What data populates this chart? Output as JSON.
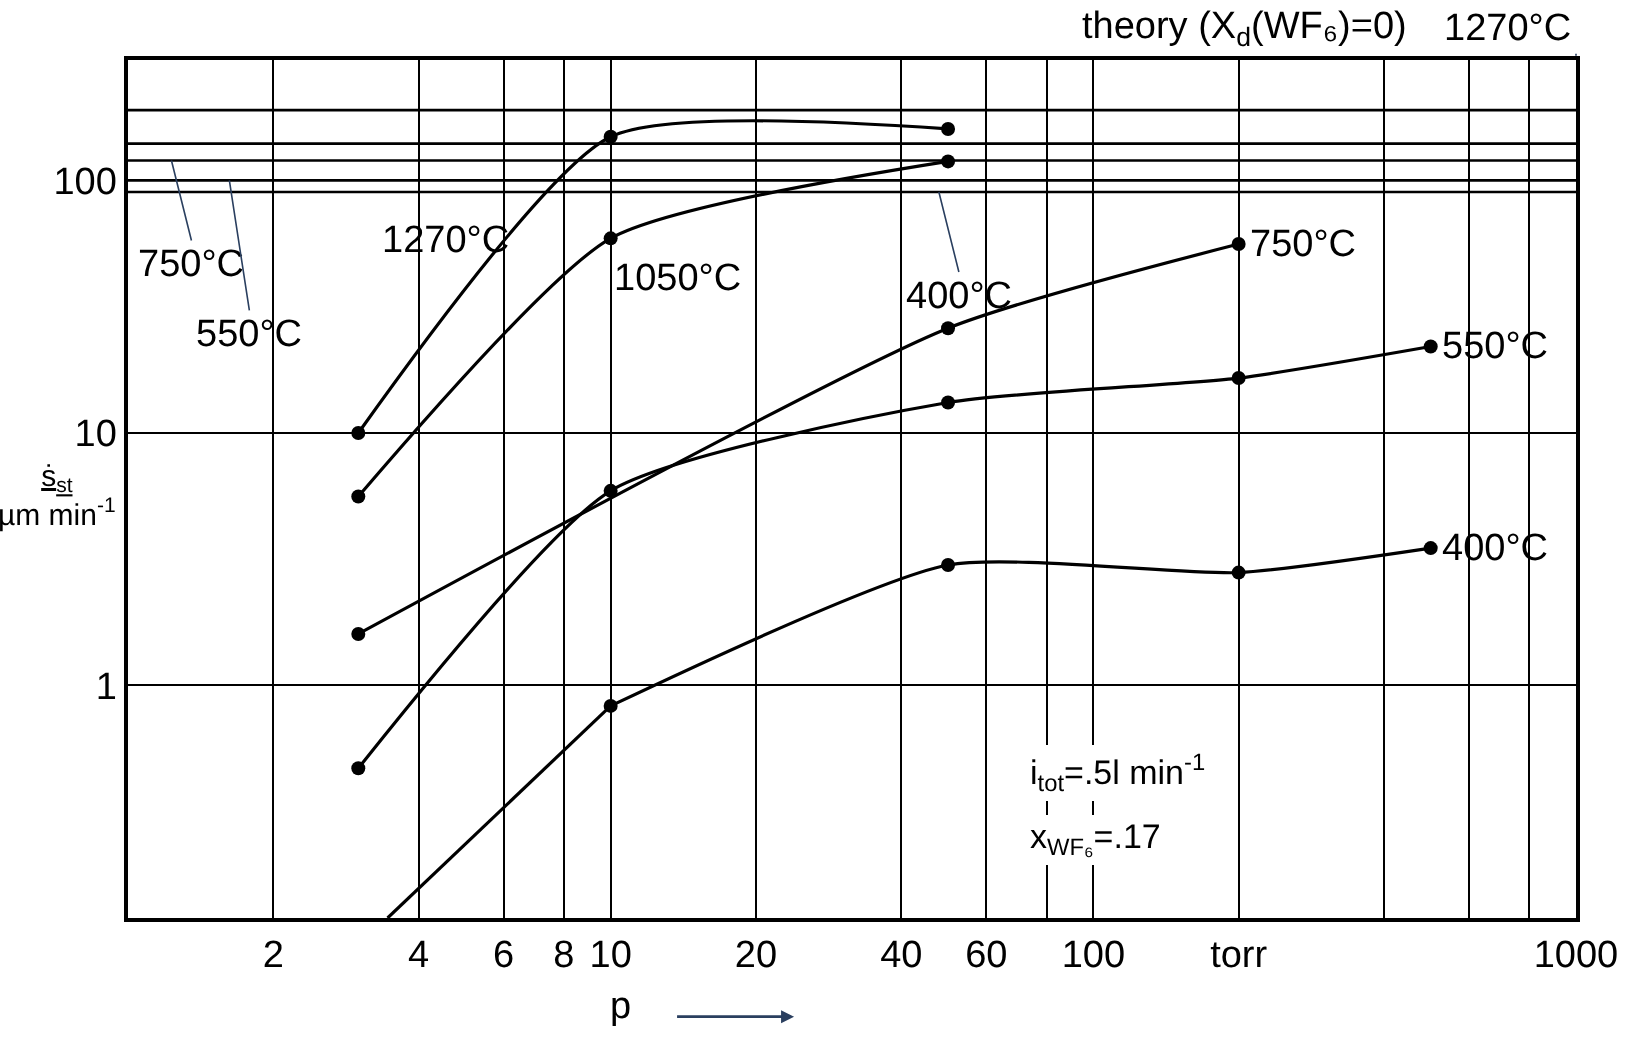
{
  "chart_data": {
    "type": "line",
    "log": "xy",
    "grid": true,
    "legend": false,
    "marker": "circle",
    "line_style": "solid",
    "xlabel": "p",
    "ylabel": "ṡ$_{st}$\nµm min$^{-1}$",
    "xlim": [
      1,
      1000
    ],
    "ylim": [
      0.12,
      300
    ],
    "xticks": [
      {
        "value": 1,
        "label": null
      },
      2,
      4,
      6,
      8,
      10,
      20,
      40,
      60,
      {
        "value": 80,
        "label": null
      },
      100,
      {
        "value": 200,
        "label": "torr"
      },
      {
        "value": 400,
        "label": null
      },
      {
        "value": 600,
        "label": null
      },
      {
        "value": 800,
        "label": null
      },
      1000
    ],
    "yticks": [
      1,
      10,
      100
    ],
    "series": [
      {
        "name": "1270°C",
        "color": "#000000",
        "x": [
          3,
          10,
          50
        ],
        "values": [
          10,
          149,
          160
        ]
      },
      {
        "name": "1050°C",
        "color": "#000000",
        "x": [
          3,
          10,
          50
        ],
        "values": [
          5.6,
          59,
          119
        ]
      },
      {
        "name": "750°C",
        "color": "#000000",
        "x": [
          3,
          50,
          200
        ],
        "values": [
          1.6,
          26,
          56
        ]
      },
      {
        "name": "550°C",
        "color": "#000000",
        "x": [
          3,
          10,
          50,
          200,
          500
        ],
        "values": [
          0.47,
          5.9,
          13.2,
          16.5,
          22
        ]
      },
      {
        "name": "400°C",
        "color": "#000000",
        "x": [
          10,
          50,
          200,
          500
        ],
        "values": [
          0.83,
          3,
          2.8,
          3.5
        ]
      },
      {
        "color": "#000000",
        "marker": "none",
        "x": [
          3.45,
          10
        ],
        "values": [
          0.12,
          0.83
        ]
      }
    ],
    "ref_lines": [
      {
        "axis": "y",
        "value": 190,
        "label": "1270°C",
        "color": "#000000"
      },
      {
        "axis": "y",
        "value": 140,
        "label": null,
        "color": "#000000"
      },
      {
        "axis": "y",
        "value": 120,
        "label": "750°C",
        "color": "#000000"
      },
      {
        "axis": "y",
        "value": 100,
        "label": "550°C",
        "color": "#000000"
      },
      {
        "axis": "y",
        "value": 90,
        "label": "400°C",
        "color": "#000000"
      }
    ],
    "annotations": [
      "theory (X$_{d}$(WF₆)=0)",
      "i$_{tot}$=.5l min$^{-1}$",
      "x$_{WF₆}$=.17"
    ]
  }
}
